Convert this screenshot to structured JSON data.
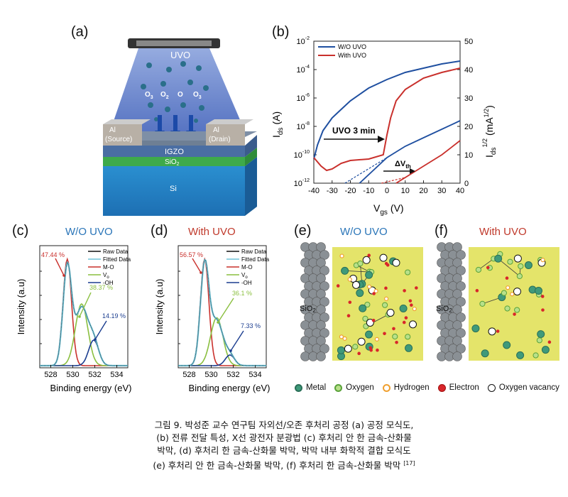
{
  "colors": {
    "blue": "#1f4fa0",
    "red": "#c9302c",
    "cyan": "#6fc3d8",
    "green": "#8abf3f",
    "navy": "#1b3d8f",
    "title_blue": "#2a75b8",
    "title_red": "#c0392b"
  },
  "panel_a": {
    "letter": "(a)",
    "uvo": "UVO",
    "species": [
      "O",
      "O",
      "O",
      "O"
    ],
    "species_sub": [
      "3",
      "2",
      "",
      "3"
    ],
    "source": [
      "Al",
      "(Source)"
    ],
    "drain": [
      "Al",
      "(Drain)"
    ],
    "igzo": "IGZO",
    "sio2": "SiO",
    "sio2_sub": "2",
    "si": "Si"
  },
  "panel_b": {
    "letter": "(b)",
    "legend": [
      "W/O UVO",
      "With UVO"
    ],
    "annot_uvo": "UVO 3 min",
    "annot_dvth": "ΔV",
    "annot_dvth_sub": "th",
    "ylabel_left": "I",
    "ylabel_left_sub": "ds",
    "ylabel_left_unit": "(A)",
    "ylabel_right": "I",
    "ylabel_right_sub": "ds",
    "ylabel_right_sup": "1/2",
    "ylabel_right_unit": "(mA",
    "xlabel": "V",
    "xlabel_sub": "gs",
    "xlabel_unit": "(V)",
    "x_ticks": [
      "-40",
      "-30",
      "-20",
      "-10",
      "0",
      "10",
      "20",
      "30",
      "40"
    ],
    "y_left_ticks": [
      "10",
      "10",
      "10",
      "10",
      "10",
      "10"
    ],
    "y_left_exps": [
      "-12",
      "-10",
      "-8",
      "-6",
      "-4",
      "-2"
    ],
    "y_right_ticks": [
      "0",
      "10",
      "20",
      "30",
      "40",
      "50"
    ]
  },
  "panel_c": {
    "letter": "(c)",
    "title": "W/O UVO",
    "legend": [
      "Raw Data",
      "Fitted Data",
      "M-O",
      "V",
      "-OH"
    ],
    "legend_sub": [
      "",
      "",
      "",
      "o",
      ""
    ],
    "labels": [
      "47.44 %",
      "38.37 %",
      "14.19 %"
    ],
    "xlabel": "Binding energy (eV)",
    "ylabel": "Intensity (a.u)",
    "x_ticks": [
      "528",
      "530",
      "532",
      "534"
    ]
  },
  "panel_d": {
    "letter": "(d)",
    "title": "With UVO",
    "legend": [
      "Raw Data",
      "Fitted Data",
      "M-O",
      "V",
      "-OH"
    ],
    "legend_sub": [
      "",
      "",
      "",
      "o",
      ""
    ],
    "labels": [
      "56.57 %",
      "36.1 %",
      "7.33 %"
    ],
    "xlabel": "Binding energy (eV)",
    "ylabel": "Intensity (a.u)",
    "x_ticks": [
      "528",
      "530",
      "532",
      "534"
    ]
  },
  "panel_e": {
    "letter": "(e)",
    "title": "W/O UVO",
    "sio2": "SiO",
    "sio2_sub": "2"
  },
  "panel_f": {
    "letter": "(f)",
    "title": "With UVO",
    "sio2": "SiO",
    "sio2_sub": "2"
  },
  "legend_bottom": [
    "Metal",
    "Oxygen",
    "Hydrogen",
    "Electron",
    "Oxygen vacancy"
  ],
  "caption": {
    "line1": "그림 9. 박성준 교수 연구팀 자외선/오존 후처리 공정 (a) 공정 모식도,",
    "line2": "(b) 전류 전달 특성, X선 광전자 분광법 (c) 후처리 안 한 금속-산화물",
    "line3": "박막, (d) 후처리 한 금속-산화물 박막, 박막 내부 화학적 결합 모식도",
    "line4": "(e) 후처리 안 한 금속-산화물 박막, (f) 후처리 한 금속-산화물 박막",
    "ref": "[17]"
  },
  "chart_data": [
    {
      "type": "line",
      "panel": "(b)",
      "xlabel": "Vgs (V)",
      "ylabel": "Ids (A)",
      "ylabel_right": "Ids^1/2 (mA^1/2)",
      "xlim": [
        -40,
        40
      ],
      "ylim_log": [
        -12,
        -2
      ],
      "ylim_right": [
        0,
        50
      ],
      "series": [
        {
          "name": "W/O UVO",
          "x": [
            -40,
            -38,
            -35,
            -30,
            -25,
            -20,
            -10,
            0,
            10,
            20,
            30,
            40
          ],
          "log_y": [
            -10.3,
            -9.3,
            -8.3,
            -7.4,
            -6.8,
            -6.2,
            -5.3,
            -4.7,
            -4.2,
            -3.9,
            -3.6,
            -3.4
          ]
        },
        {
          "name": "With UVO",
          "x": [
            -40,
            -36,
            -33,
            -30,
            -25,
            -20,
            -10,
            -2,
            0,
            2,
            5,
            10,
            20,
            30,
            40
          ],
          "log_y": [
            -10.2,
            -10.8,
            -11.1,
            -11.0,
            -10.6,
            -10.4,
            -10.3,
            -10.0,
            -8.6,
            -7.4,
            -6.2,
            -5.4,
            -4.6,
            -4.2,
            -3.9
          ]
        }
      ],
      "sqrt_series": [
        {
          "name": "W/O UVO",
          "x": [
            -15,
            0,
            10,
            20,
            30,
            40
          ],
          "y": [
            0,
            9,
            13,
            16,
            19,
            22
          ]
        },
        {
          "name": "With UVO",
          "x": [
            5,
            10,
            20,
            30,
            40
          ],
          "y": [
            0,
            2,
            6,
            10,
            15
          ]
        }
      ]
    },
    {
      "type": "line",
      "panel": "(c)",
      "xlabel": "Binding energy (eV)",
      "ylabel": "Intensity (a.u)",
      "xlim": [
        527,
        535
      ],
      "components": [
        {
          "name": "M-O",
          "center": 529.5,
          "height": 1.0,
          "width": 0.55,
          "area_pct": 47.44
        },
        {
          "name": "Vo",
          "center": 530.8,
          "height": 0.58,
          "width": 0.8,
          "area_pct": 38.37
        },
        {
          "name": "-OH",
          "center": 531.9,
          "height": 0.24,
          "width": 0.65,
          "area_pct": 14.19
        }
      ]
    },
    {
      "type": "line",
      "panel": "(d)",
      "xlabel": "Binding energy (eV)",
      "ylabel": "Intensity (a.u)",
      "xlim": [
        527,
        535
      ],
      "components": [
        {
          "name": "M-O",
          "center": 529.4,
          "height": 1.0,
          "width": 0.55,
          "area_pct": 56.57
        },
        {
          "name": "Vo",
          "center": 530.5,
          "height": 0.45,
          "width": 0.8,
          "area_pct": 36.1
        },
        {
          "name": "-OH",
          "center": 531.7,
          "height": 0.1,
          "width": 0.6,
          "area_pct": 7.33
        }
      ]
    }
  ]
}
